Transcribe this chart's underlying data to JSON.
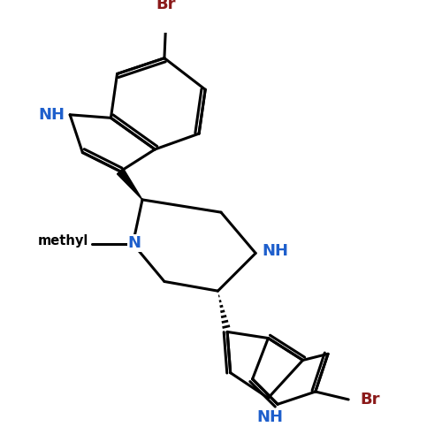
{
  "bg_color": "#ffffff",
  "bond_color": "#000000",
  "n_color": "#1e5fcc",
  "br_color": "#8b1a1a",
  "bond_width": 2.2,
  "font_size_atom": 13,
  "xlim": [
    -5.5,
    7.5
  ],
  "ylim": [
    -7.5,
    5.5
  ]
}
